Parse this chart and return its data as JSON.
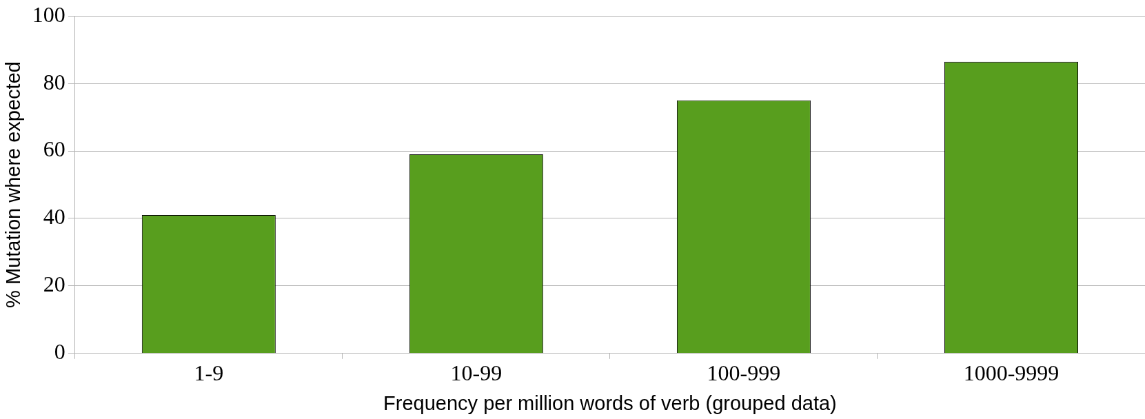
{
  "chart_data": {
    "type": "bar",
    "xlabel": "Frequency per million words of verb (grouped data)",
    "ylabel": "% Mutation where expected",
    "categories": [
      "1-9",
      "10-99",
      "100-999",
      "1000-9999"
    ],
    "values": [
      41,
      59,
      75,
      86.4
    ],
    "color": "#589e1e",
    "ylim": [
      0,
      100
    ],
    "yticks": [
      0,
      20,
      40,
      60,
      80,
      100
    ],
    "grid": "y",
    "legend": false
  }
}
